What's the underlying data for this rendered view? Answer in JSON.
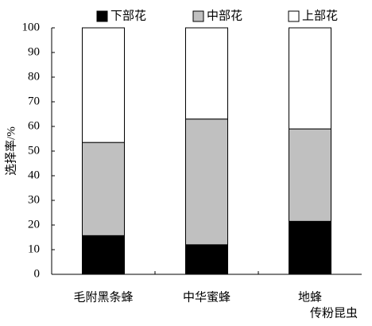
{
  "chart_data": {
    "type": "stacked_bar",
    "categories": [
      "毛附黑条蜂",
      "中华蜜蜂",
      "地蜂"
    ],
    "series": [
      {
        "name": "下部花",
        "color": "#000000",
        "values": [
          15.7,
          12,
          21.5
        ]
      },
      {
        "name": "中部花",
        "color": "#c0c0c0",
        "values": [
          37.8,
          51,
          37.5
        ]
      },
      {
        "name": "上部花",
        "color": "#ffffff",
        "values": [
          46.5,
          37,
          41
        ]
      }
    ],
    "y_label": "选择率/%",
    "x_label": "传粉昆虫",
    "ylim": [
      0,
      100
    ],
    "yticks": [
      0,
      10,
      20,
      30,
      40,
      50,
      60,
      70,
      80,
      90,
      100
    ]
  }
}
